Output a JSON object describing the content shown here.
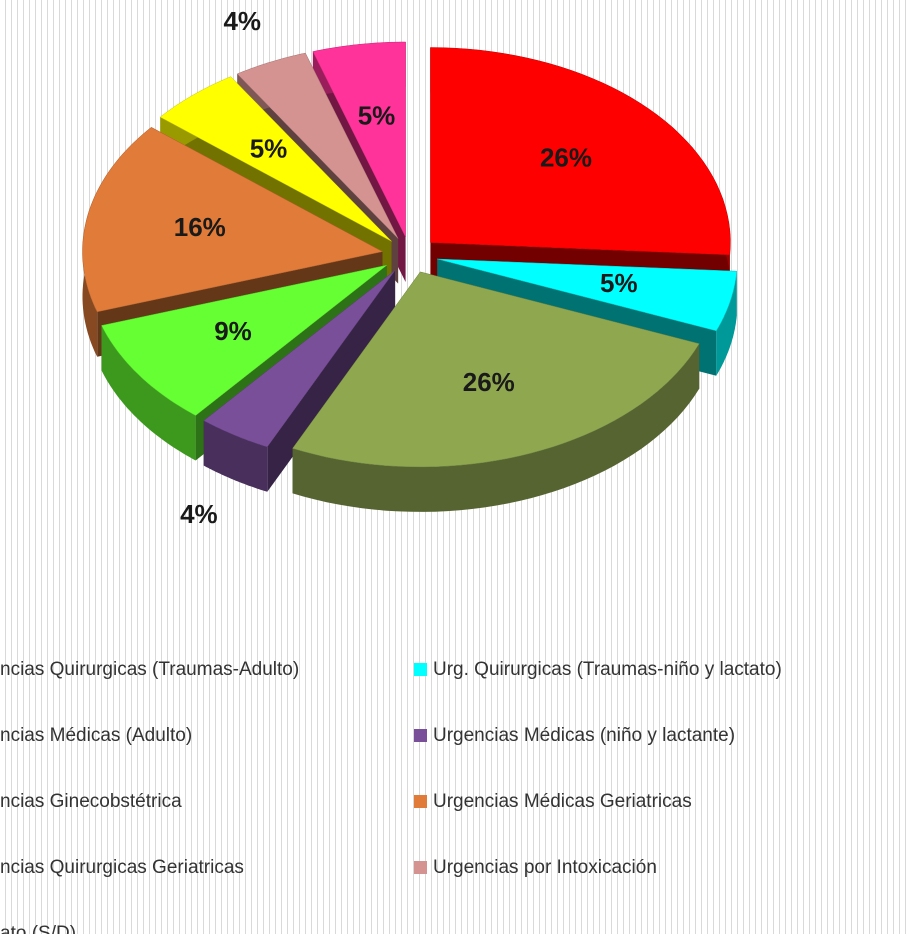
{
  "chart_data": {
    "type": "pie",
    "categories": [
      "ncias Quirurgicas (Traumas-Adulto)",
      "Urg. Quirurgicas (Traumas-niño y lactato)",
      "ncias Médicas (Adulto)",
      "Urgencias Médicas (niño y lactante)",
      "ncias Ginecobstétrica",
      "Urgencias Médicas Geriatricas",
      "ncias Quirurgicas Geriatricas",
      "Urgencias por Intoxicación",
      "ato  (S/D)"
    ],
    "values": [
      26,
      5,
      26,
      4,
      9,
      16,
      5,
      4,
      5
    ],
    "value_labels": [
      "26%",
      "5%",
      "26%",
      "4%",
      "9%",
      "16%",
      "5%",
      "4%",
      "5%"
    ],
    "colors": [
      "#ff0000",
      "#00ffff",
      "#8fa850",
      "#7a4f9a",
      "#66ff33",
      "#e07b39",
      "#ffff00",
      "#d49390",
      "#ff3399"
    ],
    "legend": "bottom"
  }
}
